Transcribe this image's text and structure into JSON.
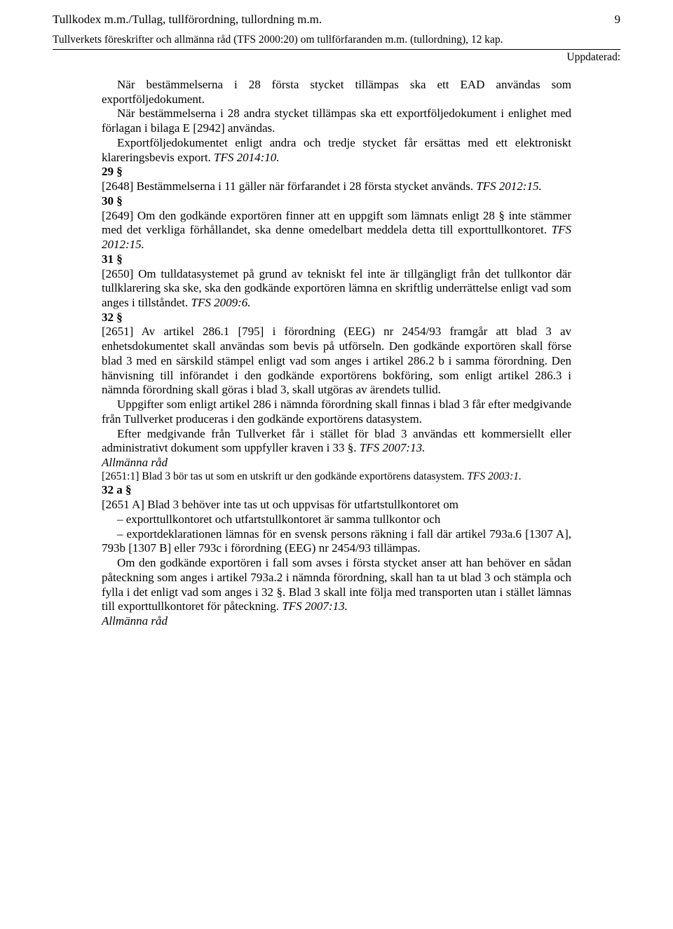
{
  "header": {
    "title_left": "Tullkodex m.m./Tullag, tullförordning, tullordning m.m.",
    "page_number": "9",
    "subtitle": "Tullverkets föreskrifter och allmänna råd (TFS 2000:20) om tullförfaranden m.m. (tullordning), 12 kap.",
    "updated_label": "Uppdaterad:"
  },
  "intro": {
    "p1": "När bestämmelserna i 28 första stycket tillämpas ska ett EAD användas som exportföljedokument.",
    "p2": "När bestämmelserna i 28 andra stycket tillämpas ska ett exportföljedokument i enlighet med förlagan i bilaga E [2942] användas.",
    "p3": "Exportföljedokumentet enligt andra och tredje stycket får ersättas med ett elektroniskt klareringsbevis export. ",
    "p3_ref": "TFS 2014:10."
  },
  "s29": {
    "head": "29 §",
    "body": "[2648] Bestämmelserna i 11 gäller när förfarandet i 28 första stycket används. ",
    "ref": "TFS 2012:15."
  },
  "s30": {
    "head": "30 §",
    "body": "[2649] Om den godkände exportören finner att en uppgift som lämnats enligt 28 § inte stämmer med det verkliga förhållandet, ska denne omedelbart meddela detta till exporttullkontoret. ",
    "ref": "TFS 2012:15."
  },
  "s31": {
    "head": "31 §",
    "body": "[2650] Om tulldatasystemet på grund av tekniskt fel inte är tillgängligt från det tullkontor där tullklarering ska ske, ska den godkände exportören lämna en skriftlig underrättelse enligt vad som anges i tillståndet. ",
    "ref": "TFS 2009:6."
  },
  "s32": {
    "head": "32 §",
    "p1": "[2651] Av artikel 286.1 [795] i förordning (EEG) nr 2454/93 framgår att blad 3 av enhetsdokumentet skall användas som bevis på utförseln. Den godkände exportören skall förse blad 3 med en särskild stämpel enligt vad som anges i artikel 286.2 b i samma förordning. Den hänvisning till införandet i den godkände exportörens bokföring, som enligt artikel 286.3 i nämnda förordning skall göras i blad 3, skall utgöras av ärendets tullid.",
    "p2": "Uppgifter som enligt artikel 286 i nämnda förordning skall finnas i blad 3 får efter medgivande från Tullverket produceras i den godkände exportörens datasystem.",
    "p3a": "Efter medgivande från Tullverket får i stället för blad 3 användas ett kommersiellt eller administrativt dokument som uppfyller kraven i 33 §. ",
    "p3_ref": "TFS 2007:13.",
    "advice_head": "Allmänna råd",
    "advice_body": "[2651:1] Blad 3 bör tas ut som en utskrift ur den godkände exportörens datasystem. ",
    "advice_ref": "TFS 2003:1."
  },
  "s32a": {
    "head": "32 a §",
    "p1": "[2651 A] Blad 3 behöver inte tas ut och uppvisas för utfartstullkontoret om",
    "li1": "– exporttullkontoret och utfartstullkontoret är samma tullkontor och",
    "li2": "– exportdeklarationen lämnas för en svensk persons räkning i fall där artikel 793a.6 [1307 A], 793b [1307 B] eller 793c i förordning (EEG) nr 2454/93 tillämpas.",
    "p2": "Om den godkände exportören i fall som avses i första stycket anser att han behöver en sådan påteckning som anges i artikel 793a.2 i nämnda förordning, skall han ta ut blad 3 och stämpla och fylla i det enligt vad som anges i 32 §. Blad 3 skall inte följa med transporten utan i stället lämnas till exporttullkontoret för påteckning. ",
    "p2_ref": "TFS 2007:13.",
    "advice_head": "Allmänna råd"
  }
}
